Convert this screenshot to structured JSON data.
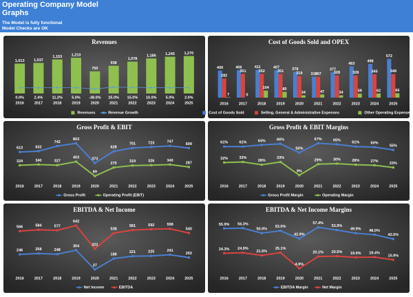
{
  "header": {
    "title": "Operating Company Model Graphs",
    "lines": [
      "The Model is fully functional",
      "Model Checks are OK"
    ]
  },
  "chart_data": [
    {
      "type": "bar",
      "title": "Revenues",
      "categories": [
        "2016",
        "2017",
        "2018",
        "2019",
        "2020",
        "2021",
        "2022",
        "2023",
        "2024",
        "2025"
      ],
      "ylim": [
        0,
        1350
      ],
      "y2lim": [
        -200,
        1200
      ],
      "series": [
        {
          "name": "Revenues",
          "color": "#8fbf4f",
          "values": [
            1013,
            1037,
            1153,
            1210,
            750,
            938,
            1078,
            1186,
            1245,
            1270
          ],
          "value_labels": [
            "1,013",
            "1,037",
            "1,153",
            "1,210",
            "750",
            "938",
            "1,078",
            "1,186",
            "1,245",
            "1,270"
          ]
        },
        {
          "name": "Revenue Growth",
          "color": "#5b9bd5",
          "axis": "y2",
          "values": [
            0.0,
            2.4,
            11.2,
            5.0,
            -38.0,
            25.0,
            15.0,
            10.0,
            5.0,
            2.0
          ],
          "value_labels": [
            "0.0%",
            "2.4%",
            "11.2%",
            "5.0%",
            "-38.0%",
            "25.0%",
            "15.0%",
            "10.0%",
            "5.0%",
            "2.0%"
          ]
        }
      ]
    },
    {
      "type": "bar",
      "title": "Cost of Goods Sold and OPEX",
      "categories": [
        "2016",
        "2017",
        "2018",
        "2019",
        "2020",
        "2021",
        "2022",
        "2023",
        "2024",
        "2025"
      ],
      "ylim": [
        0,
        650
      ],
      "series": [
        {
          "name": "Cost of Goods Sold",
          "color": "#4a7fd0",
          "values": [
            400,
            406,
            411,
            407,
            378,
            310,
            377,
            463,
            498,
            572
          ]
        },
        {
          "name": "Selling, General & Administrative Expenses",
          "color": "#d9443f",
          "values": [
            282,
            351,
            352,
            351,
            319,
            307,
            328,
            328,
            345,
            348
          ]
        },
        {
          "name": "Other Operating Expenses",
          "color": "#8fbf4f",
          "values": [
            7,
            0,
            104,
            85,
            34,
            47,
            34,
            59,
            62,
            66
          ]
        }
      ]
    },
    {
      "type": "line",
      "title": "Gross Profit & EBIT",
      "categories": [
        "2016",
        "2017",
        "2018",
        "2019",
        "2020",
        "2021",
        "2022",
        "2023",
        "2024",
        "2025"
      ],
      "ylim": [
        0,
        900
      ],
      "series": [
        {
          "name": "Gross Profit",
          "color": "#4a7fd0",
          "values": [
            613,
            632,
            742,
            803,
            373,
            628,
            701,
            723,
            747,
            699
          ]
        },
        {
          "name": "Operating Profit (EBIT)",
          "color": "#8fbf4f",
          "values": [
            324,
            340,
            327,
            403,
            89,
            275,
            319,
            326,
            340,
            287
          ]
        }
      ]
    },
    {
      "type": "line",
      "title": "Gross Profit & EBIT Margins",
      "categories": [
        "2016",
        "2017",
        "2018",
        "2019",
        "2020",
        "2021",
        "2022",
        "2023",
        "2024",
        "2025"
      ],
      "ylim": [
        0,
        75
      ],
      "series": [
        {
          "name": "Gross Profit Margin",
          "color": "#4a7fd0",
          "values": [
            61,
            61,
            64,
            66,
            50,
            67,
            65,
            61,
            60,
            55
          ],
          "value_labels": [
            "61%",
            "61%",
            "64%",
            "66%",
            "50%",
            "67%",
            "65%",
            "61%",
            "60%",
            "55%"
          ]
        },
        {
          "name": "Operating Margin",
          "color": "#8fbf4f",
          "values": [
            32,
            33,
            28,
            33,
            9,
            29,
            30,
            28,
            27,
            23
          ],
          "value_labels": [
            "32%",
            "33%",
            "28%",
            "33%",
            "9%",
            "29%",
            "30%",
            "28%",
            "27%",
            "23%"
          ]
        }
      ]
    },
    {
      "type": "line",
      "title": "EBITDA & Net Income",
      "categories": [
        "2016",
        "2017",
        "2018",
        "2019",
        "2020",
        "2021",
        "2022",
        "2023",
        "2024",
        "2025"
      ],
      "ylim": [
        0,
        700
      ],
      "series": [
        {
          "name": "Net Income",
          "color": "#4a7fd0",
          "values": [
            246,
            258,
            248,
            304,
            37,
            188,
            221,
            225,
            241,
            202
          ]
        },
        {
          "name": "EBITDA",
          "color": "#d9443f",
          "values": [
            566,
            584,
            577,
            642,
            322,
            538,
            581,
            592,
            598,
            540
          ]
        }
      ]
    },
    {
      "type": "line",
      "title": "EBITDA & Net Income Margins",
      "categories": [
        "2016",
        "2017",
        "2018",
        "2019",
        "2020",
        "2021",
        "2022",
        "2023",
        "2024",
        "2025"
      ],
      "ylim": [
        0,
        65
      ],
      "series": [
        {
          "name": "EBITDA Margin",
          "color": "#4a7fd0",
          "values": [
            55.9,
            56.3,
            50.0,
            53.0,
            42.9,
            57.4,
            53.9,
            49.9,
            48.0,
            42.5
          ],
          "value_labels": [
            "55.9%",
            "56.3%",
            "50.0%",
            "53.0%",
            "42.9%",
            "57.4%",
            "53.9%",
            "49.9%",
            "48.0%",
            "42.5%"
          ]
        },
        {
          "name": "Net Margin",
          "color": "#d9443f",
          "values": [
            24.3,
            24.9,
            21.5,
            25.1,
            4.9,
            20.1,
            20.5,
            19.0,
            19.4,
            15.9
          ],
          "value_labels": [
            "24.3%",
            "24.9%",
            "21.5%",
            "25.1%",
            "4.9%",
            "20.1%",
            "20.5%",
            "19.0%",
            "19.4%",
            "15.9%"
          ]
        }
      ]
    }
  ]
}
